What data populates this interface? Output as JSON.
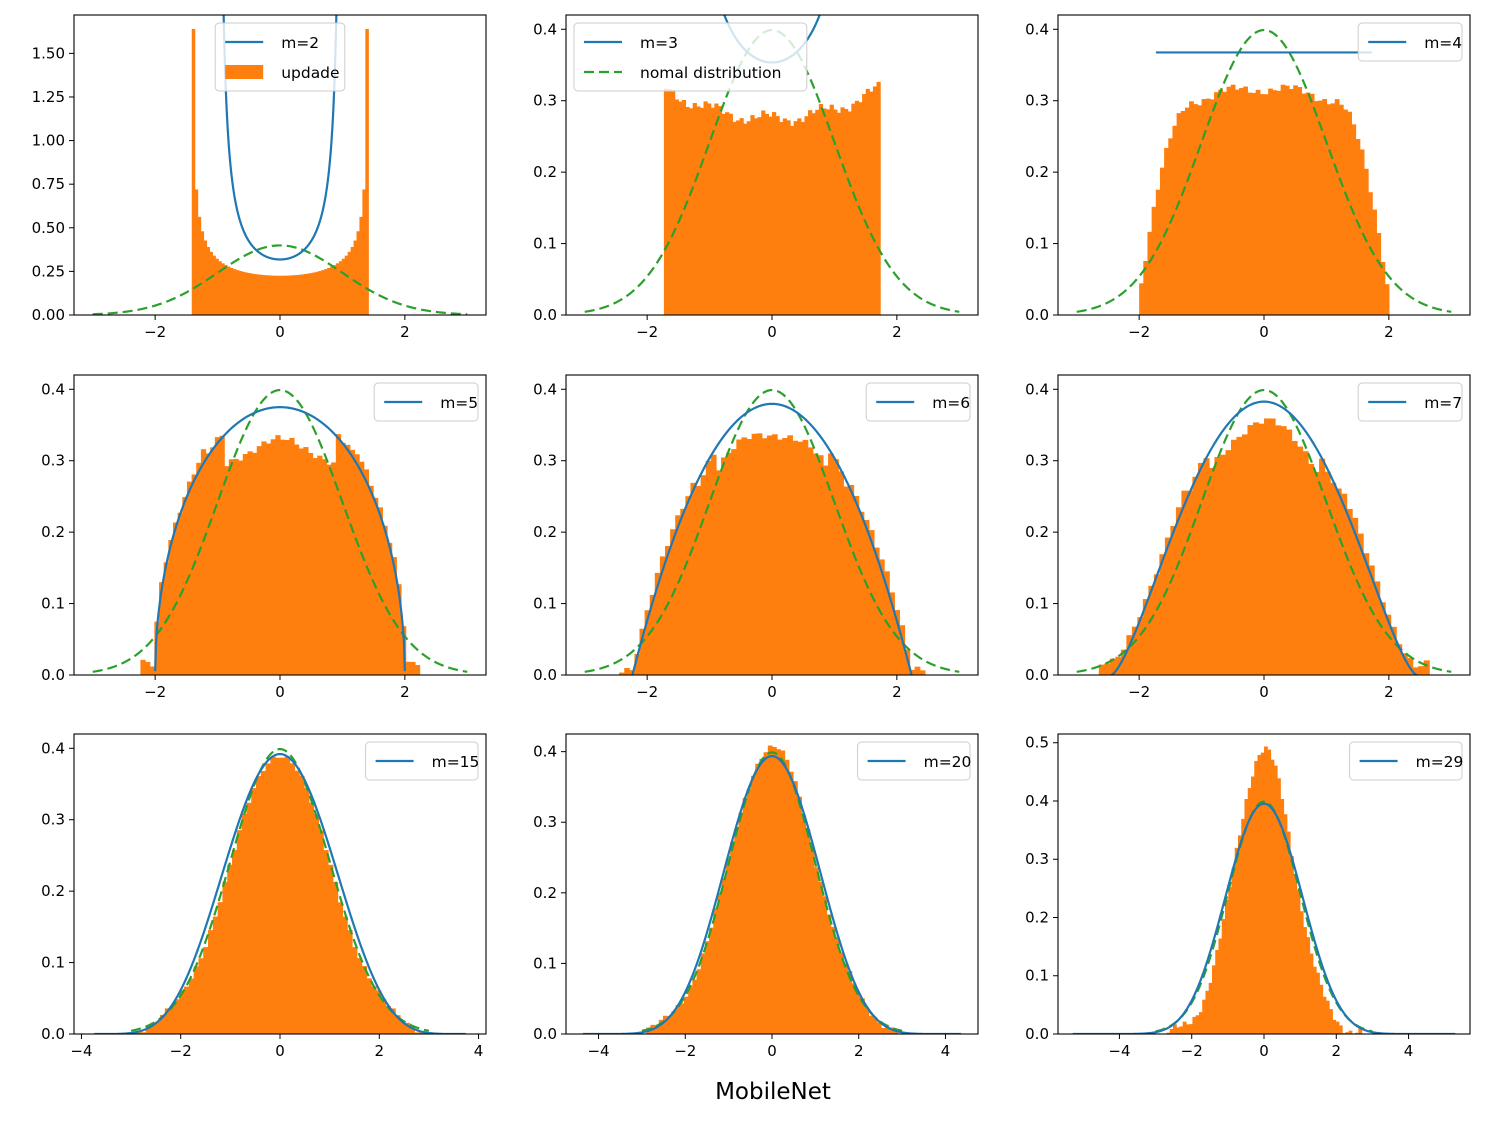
{
  "figure": {
    "xlabel": "MobileNet",
    "colors": {
      "histogram": "#ff7f0e",
      "fitted": "#1f77b4",
      "normal": "#2ca02c"
    }
  },
  "chart_data": [
    {
      "type": "bar",
      "m": 2,
      "xlim": [
        -3.3,
        3.3
      ],
      "ylim": [
        0,
        1.72
      ],
      "xticks": [
        -2,
        0,
        2
      ],
      "yticks": [
        0.0,
        0.25,
        0.5,
        0.75,
        1.0,
        1.25,
        1.5
      ],
      "ytick_labels": [
        "0.00",
        "0.25",
        "0.50",
        "0.75",
        "1.00",
        "1.25",
        "1.50"
      ],
      "histogram_range": [
        -1.414,
        1.414
      ],
      "legend": [
        "m=2",
        "updade"
      ],
      "legend_loc": "upper center"
    },
    {
      "type": "bar",
      "m": 3,
      "xlim": [
        -3.3,
        3.3
      ],
      "ylim": [
        0,
        0.42
      ],
      "xticks": [
        -2,
        0,
        2
      ],
      "yticks": [
        0.0,
        0.1,
        0.2,
        0.3,
        0.4
      ],
      "ytick_labels": [
        "0.0",
        "0.1",
        "0.2",
        "0.3",
        "0.4"
      ],
      "histogram_range": [
        -1.732,
        1.732
      ],
      "legend": [
        "m=3",
        "nomal distribution"
      ],
      "legend_loc": "upper left"
    },
    {
      "type": "bar",
      "m": 4,
      "xlim": [
        -3.3,
        3.3
      ],
      "ylim": [
        0,
        0.42
      ],
      "xticks": [
        -2,
        0,
        2
      ],
      "yticks": [
        0.0,
        0.1,
        0.2,
        0.3,
        0.4
      ],
      "ytick_labels": [
        "0.0",
        "0.1",
        "0.2",
        "0.3",
        "0.4"
      ],
      "histogram_range": [
        -2.0,
        2.0
      ],
      "legend": [
        "m=4"
      ],
      "legend_loc": "upper right"
    },
    {
      "type": "bar",
      "m": 5,
      "xlim": [
        -3.3,
        3.3
      ],
      "ylim": [
        0,
        0.42
      ],
      "xticks": [
        -2,
        0,
        2
      ],
      "yticks": [
        0.0,
        0.1,
        0.2,
        0.3,
        0.4
      ],
      "ytick_labels": [
        "0.0",
        "0.1",
        "0.2",
        "0.3",
        "0.4"
      ],
      "histogram_range": [
        -2.236,
        2.236
      ],
      "legend": [
        "m=5"
      ],
      "legend_loc": "upper right"
    },
    {
      "type": "bar",
      "m": 6,
      "xlim": [
        -3.3,
        3.3
      ],
      "ylim": [
        0,
        0.42
      ],
      "xticks": [
        -2,
        0,
        2
      ],
      "yticks": [
        0.0,
        0.1,
        0.2,
        0.3,
        0.4
      ],
      "ytick_labels": [
        "0.0",
        "0.1",
        "0.2",
        "0.3",
        "0.4"
      ],
      "histogram_range": [
        -2.449,
        2.449
      ],
      "legend": [
        "m=6"
      ],
      "legend_loc": "upper right"
    },
    {
      "type": "bar",
      "m": 7,
      "xlim": [
        -3.3,
        3.3
      ],
      "ylim": [
        0,
        0.42
      ],
      "xticks": [
        -2,
        0,
        2
      ],
      "yticks": [
        0.0,
        0.1,
        0.2,
        0.3,
        0.4
      ],
      "ytick_labels": [
        "0.0",
        "0.1",
        "0.2",
        "0.3",
        "0.4"
      ],
      "histogram_range": [
        -2.646,
        2.646
      ],
      "legend": [
        "m=7"
      ],
      "legend_loc": "upper right"
    },
    {
      "type": "bar",
      "m": 15,
      "xlim": [
        -4.15,
        4.15
      ],
      "ylim": [
        0,
        0.42
      ],
      "xticks": [
        -4,
        -2,
        0,
        2,
        4
      ],
      "yticks": [
        0.0,
        0.1,
        0.2,
        0.3,
        0.4
      ],
      "ytick_labels": [
        "0.0",
        "0.1",
        "0.2",
        "0.3",
        "0.4"
      ],
      "histogram_range": [
        -2.9,
        2.9
      ],
      "legend": [
        "m=15"
      ],
      "legend_loc": "upper right"
    },
    {
      "type": "bar",
      "m": 20,
      "xlim": [
        -4.75,
        4.75
      ],
      "ylim": [
        0,
        0.425
      ],
      "xticks": [
        -4,
        -2,
        0,
        2,
        4
      ],
      "yticks": [
        0.0,
        0.1,
        0.2,
        0.3,
        0.4
      ],
      "ytick_labels": [
        "0.0",
        "0.1",
        "0.2",
        "0.3",
        "0.4"
      ],
      "histogram_range": [
        -2.9,
        2.9
      ],
      "legend": [
        "m=20"
      ],
      "legend_loc": "upper right"
    },
    {
      "type": "bar",
      "m": 29,
      "xlim": [
        -5.7,
        5.7
      ],
      "ylim": [
        0,
        0.515
      ],
      "xticks": [
        -4,
        -2,
        0,
        2,
        4
      ],
      "yticks": [
        0.0,
        0.1,
        0.2,
        0.3,
        0.4,
        0.5
      ],
      "ytick_labels": [
        "0.0",
        "0.1",
        "0.2",
        "0.3",
        "0.4",
        "0.5"
      ],
      "histogram_range": [
        -2.7,
        2.7
      ],
      "legend": [
        "m=29"
      ],
      "legend_loc": "upper right"
    }
  ]
}
